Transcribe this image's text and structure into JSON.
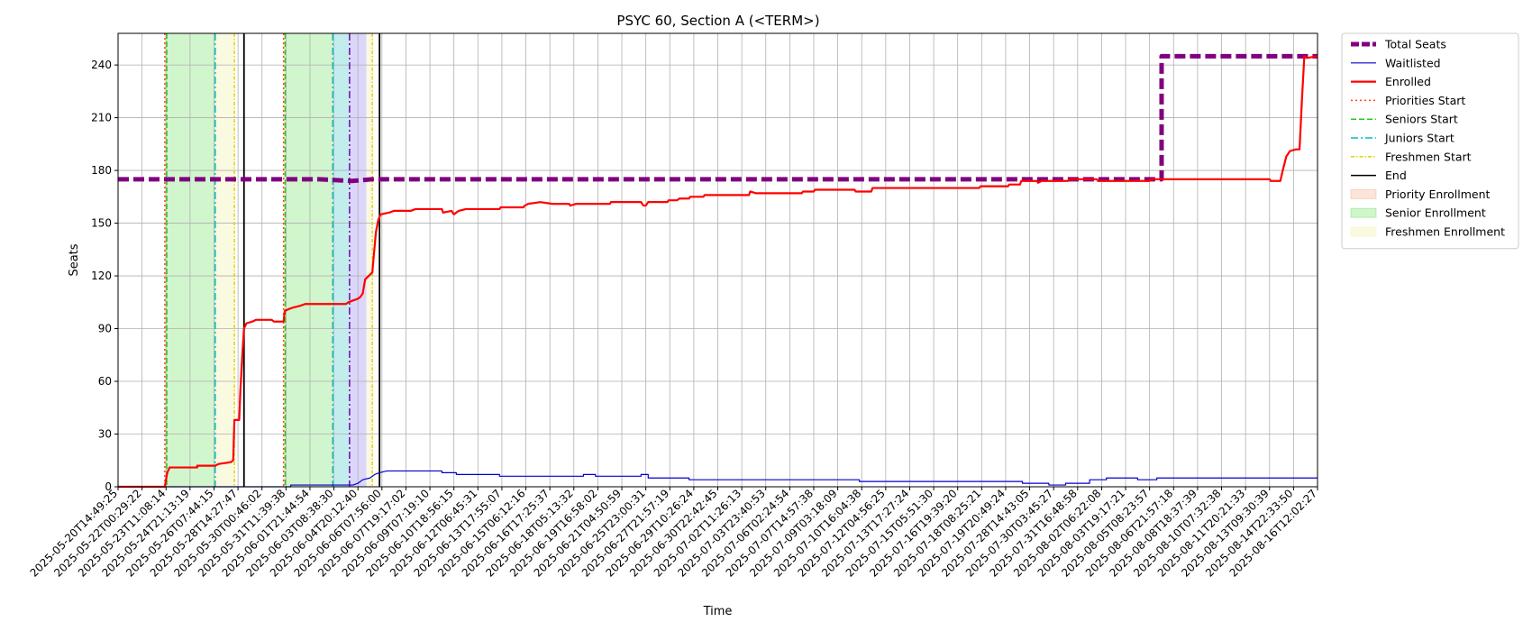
{
  "chart_data": {
    "type": "line",
    "title": "PSYC 60, Section A (<TERM>)",
    "xlabel": "Time",
    "ylabel": "Seats",
    "ylim": [
      0,
      258
    ],
    "yticks": [
      0,
      30,
      60,
      90,
      120,
      150,
      180,
      210,
      240
    ],
    "grid": true,
    "legend_position": "outside-top-right",
    "x_categories": [
      "2025-05-20T14:49:25",
      "2025-05-22T00:29:22",
      "2025-05-23T11:08:14",
      "2025-05-24T21:13:19",
      "2025-05-26T07:44:15",
      "2025-05-28T14:27:47",
      "2025-05-30T00:46:02",
      "2025-05-31T11:39:38",
      "2025-06-01T21:44:54",
      "2025-06-03T08:38:30",
      "2025-06-04T20:12:40",
      "2025-06-06T07:56:00",
      "2025-06-07T19:17:02",
      "2025-06-09T07:19:10",
      "2025-06-10T18:56:15",
      "2025-06-12T06:45:31",
      "2025-06-13T17:55:07",
      "2025-06-15T06:12:16",
      "2025-06-16T17:25:37",
      "2025-06-18T05:13:32",
      "2025-06-19T16:58:02",
      "2025-06-21T04:50:59",
      "2025-06-25T23:00:31",
      "2025-06-27T21:57:19",
      "2025-06-29T10:26:24",
      "2025-06-30T22:42:45",
      "2025-07-02T11:26:13",
      "2025-07-03T23:40:53",
      "2025-07-06T02:24:54",
      "2025-07-07T14:57:38",
      "2025-07-09T03:18:09",
      "2025-07-10T16:04:38",
      "2025-07-12T04:56:25",
      "2025-07-13T17:27:24",
      "2025-07-15T05:51:30",
      "2025-07-16T19:39:20",
      "2025-07-18T08:25:21",
      "2025-07-19T20:49:24",
      "2025-07-28T14:43:05",
      "2025-07-30T03:45:27",
      "2025-07-31T16:48:58",
      "2025-08-02T06:22:08",
      "2025-08-03T19:17:21",
      "2025-08-05T08:23:57",
      "2025-08-06T21:57:18",
      "2025-08-08T18:37:39",
      "2025-08-10T07:32:38",
      "2025-08-11T20:21:33",
      "2025-08-13T09:30:39",
      "2025-08-14T22:33:50",
      "2025-08-16T12:02:27"
    ],
    "series": [
      {
        "name": "Total Seats",
        "color": "#800080",
        "style": "dashed-thick",
        "points": [
          [
            0,
            175
          ],
          [
            8.4,
            175
          ],
          [
            9.75,
            174
          ],
          [
            10.6,
            175
          ],
          [
            43.5,
            175
          ],
          [
            43.5,
            245
          ],
          [
            50,
            245
          ]
        ]
      },
      {
        "name": "Waitlisted",
        "color": "#0000cc",
        "style": "solid-thin",
        "points": [
          [
            0,
            0
          ],
          [
            7.2,
            0
          ],
          [
            7.2,
            1
          ],
          [
            9.8,
            1
          ],
          [
            10.0,
            2
          ],
          [
            10.2,
            4
          ],
          [
            10.5,
            5
          ],
          [
            10.7,
            7
          ],
          [
            10.9,
            8
          ],
          [
            11.2,
            9
          ],
          [
            13.5,
            9
          ],
          [
            13.5,
            8
          ],
          [
            14.1,
            8
          ],
          [
            14.1,
            7
          ],
          [
            15.9,
            7
          ],
          [
            15.9,
            6
          ],
          [
            19.4,
            6
          ],
          [
            19.4,
            7
          ],
          [
            19.9,
            7
          ],
          [
            19.9,
            6
          ],
          [
            21.8,
            6
          ],
          [
            21.8,
            7
          ],
          [
            22.1,
            7
          ],
          [
            22.1,
            5
          ],
          [
            23.8,
            5
          ],
          [
            23.8,
            4
          ],
          [
            30.9,
            4
          ],
          [
            30.9,
            3
          ],
          [
            37.7,
            3
          ],
          [
            37.7,
            2
          ],
          [
            38.8,
            2
          ],
          [
            38.8,
            1
          ],
          [
            39.5,
            1
          ],
          [
            39.5,
            2
          ],
          [
            40.5,
            2
          ],
          [
            40.5,
            4
          ],
          [
            41.2,
            4
          ],
          [
            41.2,
            5
          ],
          [
            42.5,
            5
          ],
          [
            42.5,
            4
          ],
          [
            43.3,
            4
          ],
          [
            43.3,
            5
          ],
          [
            50,
            5
          ]
        ]
      },
      {
        "name": "Enrolled",
        "color": "#ff0000",
        "style": "solid",
        "points": [
          [
            0,
            0
          ],
          [
            1.95,
            0
          ],
          [
            2.05,
            8
          ],
          [
            2.15,
            11
          ],
          [
            3.3,
            11
          ],
          [
            3.3,
            12
          ],
          [
            4.05,
            12
          ],
          [
            4.2,
            13
          ],
          [
            4.7,
            14
          ],
          [
            4.8,
            15
          ],
          [
            4.85,
            38
          ],
          [
            5.05,
            38
          ],
          [
            5.1,
            55
          ],
          [
            5.18,
            75
          ],
          [
            5.25,
            90
          ],
          [
            5.35,
            93
          ],
          [
            5.6,
            94
          ],
          [
            5.75,
            95
          ],
          [
            6.4,
            95
          ],
          [
            6.5,
            94
          ],
          [
            6.9,
            94
          ],
          [
            6.95,
            100
          ],
          [
            7.1,
            101
          ],
          [
            7.3,
            102
          ],
          [
            7.6,
            103
          ],
          [
            7.8,
            104
          ],
          [
            9.5,
            104
          ],
          [
            9.6,
            105
          ],
          [
            9.8,
            106
          ],
          [
            10.0,
            107
          ],
          [
            10.1,
            108
          ],
          [
            10.2,
            110
          ],
          [
            10.3,
            118
          ],
          [
            10.45,
            120
          ],
          [
            10.6,
            122
          ],
          [
            10.65,
            130
          ],
          [
            10.75,
            145
          ],
          [
            10.85,
            152
          ],
          [
            10.95,
            155
          ],
          [
            11.3,
            156
          ],
          [
            11.5,
            157
          ],
          [
            12.2,
            157
          ],
          [
            12.4,
            158
          ],
          [
            13.5,
            158
          ],
          [
            13.55,
            156
          ],
          [
            13.9,
            157
          ],
          [
            14.0,
            155
          ],
          [
            14.2,
            157
          ],
          [
            14.5,
            158
          ],
          [
            15.9,
            158
          ],
          [
            15.95,
            159
          ],
          [
            16.9,
            159
          ],
          [
            16.95,
            160
          ],
          [
            17.1,
            161
          ],
          [
            17.6,
            162
          ],
          [
            18.1,
            161
          ],
          [
            18.8,
            161
          ],
          [
            18.85,
            160
          ],
          [
            19.1,
            161
          ],
          [
            20.5,
            161
          ],
          [
            20.55,
            162
          ],
          [
            21.8,
            162
          ],
          [
            21.9,
            160
          ],
          [
            22.0,
            160
          ],
          [
            22.1,
            162
          ],
          [
            22.9,
            162
          ],
          [
            22.95,
            163
          ],
          [
            23.3,
            163
          ],
          [
            23.4,
            164
          ],
          [
            23.8,
            164
          ],
          [
            23.85,
            165
          ],
          [
            24.4,
            165
          ],
          [
            24.45,
            166
          ],
          [
            26.3,
            166
          ],
          [
            26.35,
            168
          ],
          [
            26.6,
            167
          ],
          [
            28.5,
            167
          ],
          [
            28.55,
            168
          ],
          [
            29.0,
            168
          ],
          [
            29.05,
            169
          ],
          [
            30.7,
            169
          ],
          [
            30.75,
            168
          ],
          [
            31.4,
            168
          ],
          [
            31.45,
            170
          ],
          [
            33.2,
            170
          ],
          [
            33.5,
            170
          ],
          [
            35.9,
            170
          ],
          [
            35.95,
            171
          ],
          [
            37.1,
            171
          ],
          [
            37.15,
            172
          ],
          [
            37.6,
            172
          ],
          [
            37.65,
            174
          ],
          [
            38.3,
            174
          ],
          [
            38.35,
            173
          ],
          [
            38.5,
            174
          ],
          [
            39.6,
            174
          ],
          [
            39.65,
            175
          ],
          [
            40.8,
            175
          ],
          [
            40.85,
            174
          ],
          [
            43.0,
            174
          ],
          [
            43.05,
            175
          ],
          [
            48.0,
            175
          ],
          [
            48.05,
            174
          ],
          [
            48.45,
            174
          ],
          [
            48.55,
            180
          ],
          [
            48.7,
            188
          ],
          [
            48.85,
            191
          ],
          [
            49.1,
            192
          ],
          [
            49.25,
            192
          ],
          [
            49.35,
            220
          ],
          [
            49.45,
            245
          ],
          [
            49.55,
            244
          ],
          [
            50,
            245
          ]
        ]
      }
    ],
    "vlines": [
      {
        "name": "Priorities Start",
        "color": "#ff4500",
        "style": "dotted",
        "x": [
          1.95,
          6.9
        ]
      },
      {
        "name": "Seniors Start",
        "color": "#22cc22",
        "style": "dashed",
        "x": [
          2.03,
          6.97
        ]
      },
      {
        "name": "Juniors Start",
        "color": "#00bfbf",
        "style": "dashdot",
        "x": [
          4.05,
          8.95
        ]
      },
      {
        "name": "Freshmen Start",
        "color": "#e6d200",
        "style": "dashdot-dense",
        "x": [
          4.85,
          10.6
        ]
      },
      {
        "name": "End",
        "color": "#000000",
        "style": "solid",
        "x": [
          5.25,
          10.9
        ]
      },
      {
        "name": "",
        "color": "#6a0dad",
        "style": "dashdot",
        "x": [
          9.65
        ]
      }
    ],
    "bands": [
      {
        "name": "Priority Enrollment",
        "color": "#f4a582",
        "ranges": [
          [
            1.95,
            2.03
          ],
          [
            6.9,
            6.97
          ]
        ]
      },
      {
        "name": "Senior Enrollment",
        "color": "#66dd55",
        "ranges": [
          [
            2.03,
            4.05
          ],
          [
            6.97,
            8.95
          ]
        ]
      },
      {
        "name": "",
        "color": "#38c5c5",
        "ranges": [
          [
            8.95,
            9.65
          ]
        ]
      },
      {
        "name": "",
        "color": "#8a78f0",
        "ranges": [
          [
            9.65,
            10.35
          ]
        ]
      },
      {
        "name": "Freshmen Enrollment",
        "color": "#eef09a",
        "ranges": [
          [
            4.05,
            4.85
          ],
          [
            10.35,
            10.6
          ]
        ]
      }
    ],
    "legend": [
      "Total Seats",
      "Waitlisted",
      "Enrolled",
      "Priorities Start",
      "Seniors Start",
      "Juniors Start",
      "Freshmen Start",
      "End",
      "Priority Enrollment",
      "Senior Enrollment",
      "Freshmen Enrollment"
    ]
  }
}
